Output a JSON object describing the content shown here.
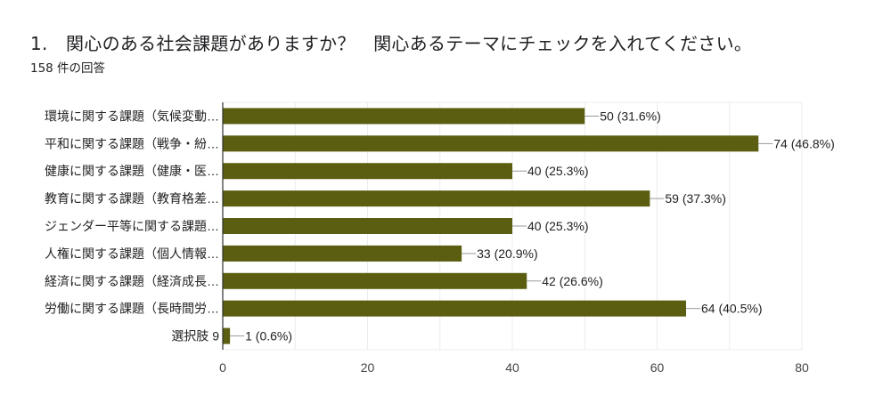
{
  "question": {
    "title": "1.　関心のある社会課題がありますか？　関心あるテーマにチェックを入れてください。",
    "responses": "158 件の回答"
  },
  "chart_data": {
    "type": "bar",
    "orientation": "horizontal",
    "categories": [
      "環境に関する課題（気候変動…",
      "平和に関する課題（戦争・紛…",
      "健康に関する課題（健康・医…",
      "教育に関する課題（教育格差…",
      "ジェンダー平等に関する課題…",
      "人権に関する課題（個人情報…",
      "経済に関する課題（経済成長…",
      "労働に関する課題（長時間労…",
      "選択肢 9"
    ],
    "values": [
      50,
      74,
      40,
      59,
      40,
      33,
      42,
      64,
      1
    ],
    "data_labels": [
      "50 (31.6%)",
      "74 (46.8%)",
      "40 (25.3%)",
      "59 (37.3%)",
      "40 (25.3%)",
      "33 (20.9%)",
      "42 (26.6%)",
      "64 (40.5%)",
      "1 (0.6%)"
    ],
    "xlim": [
      0,
      80
    ],
    "xticks": [
      "0",
      "20",
      "40",
      "60",
      "80"
    ],
    "grid": true,
    "bar_color": "#5b5e10"
  }
}
